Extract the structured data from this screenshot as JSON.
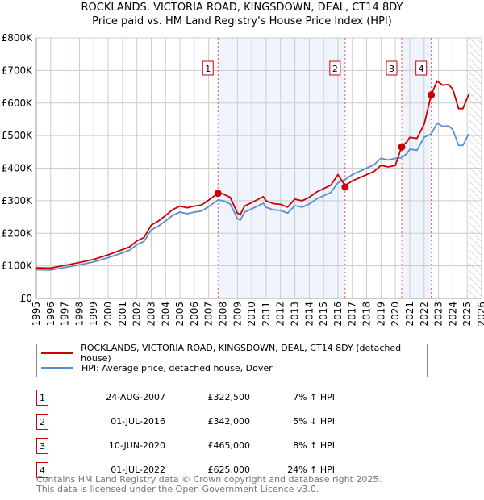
{
  "chart_data": {
    "type": "line",
    "title": "ROCKLANDS, VICTORIA ROAD, KINGSDOWN, DEAL, CT14 8DY",
    "subtitle": "Price paid vs. HM Land Registry's House Price Index (HPI)",
    "xlim": [
      1995,
      2026
    ],
    "ylim": [
      0,
      800000
    ],
    "yticks": [
      0,
      100000,
      200000,
      300000,
      400000,
      500000,
      600000,
      700000,
      800000
    ],
    "ytick_labels": [
      "£0",
      "£100K",
      "£200K",
      "£300K",
      "£400K",
      "£500K",
      "£600K",
      "£700K",
      "£800K"
    ],
    "xtick_labels": [
      "1995",
      "1996",
      "1997",
      "1998",
      "1999",
      "2000",
      "2001",
      "2002",
      "2003",
      "2004",
      "2005",
      "2006",
      "2007",
      "2008",
      "2009",
      "2010",
      "2011",
      "2012",
      "2013",
      "2014",
      "2015",
      "2016",
      "2017",
      "2018",
      "2019",
      "2020",
      "2021",
      "2022",
      "2023",
      "2024",
      "2025",
      "2026"
    ],
    "grid": true,
    "colors": {
      "property": "#cc0000",
      "hpi": "#5b8fd0",
      "shade": "#eef3fc"
    },
    "series": [
      {
        "name": "ROCKLANDS, VICTORIA ROAD, KINGSDOWN, DEAL, CT14 8DY (detached house)",
        "derived_from": "hpi"
      },
      {
        "name": "HPI: Average price, detached house, Dover",
        "x": [
          1995,
          1996,
          1997,
          1998,
          1999,
          2000,
          2001,
          2001.5,
          2002,
          2002.5,
          2003,
          2003.5,
          2004,
          2004.5,
          2005,
          2005.5,
          2006,
          2006.5,
          2007,
          2007.65,
          2008,
          2008.5,
          2009,
          2009.2,
          2009.5,
          2010,
          2010.8,
          2011,
          2011.5,
          2012,
          2012.5,
          2013,
          2013.5,
          2014,
          2014.5,
          2015,
          2015.5,
          2016,
          2016.5,
          2017,
          2017.5,
          2018,
          2018.5,
          2019,
          2019.5,
          2020,
          2020.44,
          2020.8,
          2021,
          2021.5,
          2022,
          2022.5,
          2022.9,
          2023.3,
          2023.7,
          2024,
          2024.4,
          2024.7,
          2025.1
        ],
        "values": [
          88000,
          87000,
          95000,
          103000,
          112000,
          125000,
          140000,
          148000,
          165000,
          175000,
          210000,
          222000,
          238000,
          255000,
          265000,
          260000,
          265000,
          268000,
          282000,
          302000,
          300000,
          290000,
          245000,
          240000,
          265000,
          275000,
          292000,
          280000,
          272000,
          270000,
          262000,
          285000,
          280000,
          290000,
          305000,
          315000,
          325000,
          355000,
          365000,
          380000,
          390000,
          400000,
          410000,
          430000,
          425000,
          430000,
          432000,
          445000,
          458000,
          455000,
          495000,
          505000,
          538000,
          528000,
          530000,
          518000,
          470000,
          470000,
          505000
        ]
      }
    ],
    "sales": [
      {
        "n": "1",
        "x": 2007.65,
        "date": "24-AUG-2007",
        "price": 322500,
        "price_label": "£322,500",
        "hpi": "7% ↑ HPI",
        "factor": 1.07
      },
      {
        "n": "2",
        "x": 2016.5,
        "date": "01-JUL-2016",
        "price": 342000,
        "price_label": "£342,000",
        "hpi": "5% ↓ HPI",
        "factor": 0.95
      },
      {
        "n": "3",
        "x": 2020.44,
        "date": "10-JUN-2020",
        "price": 465000,
        "price_label": "£465,000",
        "hpi": "8% ↑ HPI",
        "factor": 1.08
      },
      {
        "n": "4",
        "x": 2022.5,
        "date": "01-JUL-2022",
        "price": 625000,
        "price_label": "£625,000",
        "hpi": "24% ↑ HPI",
        "factor": 1.24
      }
    ],
    "forecast_start": 2025.1
  },
  "footer": {
    "line1": "Contains HM Land Registry data © Crown copyright and database right 2025.",
    "line2": "This data is licensed under the Open Government Licence v3.0."
  }
}
